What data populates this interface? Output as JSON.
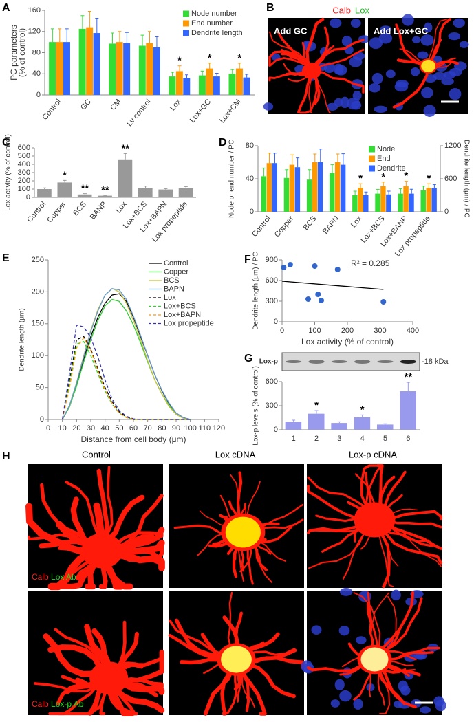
{
  "panel_labels": [
    "A",
    "B",
    "C",
    "D",
    "E",
    "F",
    "G",
    "H"
  ],
  "micrograph_b": {
    "stain_labels": [
      "Calb",
      "Lox"
    ],
    "images": [
      "Add GC",
      "Add Lox+GC"
    ]
  },
  "micrograph_h": {
    "columns": [
      "Control",
      "Lox cDNA",
      "Lox-p cDNA"
    ],
    "rows": [
      [
        "Calb",
        "Lox Ab"
      ],
      [
        "Calb",
        "Lox-p Ab"
      ]
    ]
  },
  "chart_data": [
    {
      "type": "bar",
      "ylabel": [
        "PC parameters",
        "(% of control)"
      ],
      "categories": [
        "Control",
        "GC",
        "CM",
        "Lv control",
        "Lox",
        "Lox+GC",
        "Lox+CM"
      ],
      "series": [
        {
          "name": "Node number",
          "color": "#33dd33",
          "values": [
            100,
            125,
            97,
            93,
            35,
            37,
            40
          ],
          "errors": [
            25,
            25,
            20,
            20,
            8,
            8,
            8
          ]
        },
        {
          "name": "End number",
          "color": "#ff9900",
          "values": [
            100,
            128,
            100,
            98,
            45,
            50,
            50
          ],
          "errors": [
            25,
            30,
            20,
            22,
            10,
            10,
            10
          ]
        },
        {
          "name": "Dendrite length",
          "color": "#3366ff",
          "values": [
            100,
            117,
            98,
            90,
            32,
            35,
            33
          ],
          "errors": [
            25,
            28,
            20,
            20,
            6,
            6,
            6
          ]
        }
      ],
      "ylim": [
        0,
        160
      ],
      "yticks": [
        0,
        40,
        80,
        120,
        160
      ],
      "legend": "upper right",
      "annotations": [
        {
          "category": "Lox",
          "text": "*"
        },
        {
          "category": "Lox+GC",
          "text": "*"
        },
        {
          "category": "Lox+CM",
          "text": "*"
        }
      ]
    },
    {
      "type": "bar",
      "ylabel": "Lox activity (% of control)",
      "categories": [
        "Control",
        "Copper",
        "BCS",
        "BANP",
        "Lox",
        "Lox+BCS",
        "Lox+BAPN",
        "Lox propeptide"
      ],
      "values": [
        100,
        180,
        35,
        20,
        460,
        115,
        95,
        110
      ],
      "errors": [
        15,
        25,
        10,
        5,
        70,
        20,
        10,
        20
      ],
      "color": "#999999",
      "ylim": [
        0,
        600
      ],
      "yticks": [
        0,
        100,
        200,
        300,
        400,
        500,
        600
      ],
      "annotations": [
        {
          "category": "Copper",
          "text": "*"
        },
        {
          "category": "BCS",
          "text": "**"
        },
        {
          "category": "BANP",
          "text": "**"
        },
        {
          "category": "Lox",
          "text": "**"
        }
      ]
    },
    {
      "type": "bar",
      "ylabel": "Node or end number / PC",
      "y2label": "Dendrite length (μm) / PC",
      "categories": [
        "Control",
        "Copper",
        "BCS",
        "BAPN",
        "Lox",
        "Lox+BCS",
        "Lox+BANP",
        "Lox propeptide"
      ],
      "series": [
        {
          "name": "Node",
          "color": "#33dd33",
          "values": [
            43,
            41,
            39,
            47,
            20,
            22,
            22,
            26
          ],
          "errors": [
            10,
            10,
            12,
            10,
            5,
            5,
            6,
            5
          ]
        },
        {
          "name": "End",
          "color": "#ff9900",
          "values": [
            59,
            57,
            60,
            60,
            29,
            31,
            31,
            29
          ],
          "errors": [
            12,
            12,
            10,
            10,
            5,
            5,
            6,
            5
          ]
        },
        {
          "name": "Dendrite",
          "color": "#3366ff",
          "axis": "y2",
          "values": [
            885,
            810,
            900,
            855,
            300,
            315,
            330,
            435
          ],
          "errors": [
            180,
            170,
            240,
            200,
            60,
            60,
            80,
            60
          ]
        }
      ],
      "ylim": [
        0,
        80
      ],
      "yticks": [
        0,
        40,
        80
      ],
      "y2lim": [
        0,
        1200
      ],
      "y2ticks": [
        0,
        600,
        1200
      ],
      "legend": "upper right",
      "annotations": [
        {
          "category": "Lox",
          "text": "*"
        },
        {
          "category": "Lox+BCS",
          "text": "*"
        },
        {
          "category": "Lox+BANP",
          "text": "*"
        },
        {
          "category": "Lox propeptide",
          "text": "*"
        }
      ]
    },
    {
      "type": "line",
      "xlabel": "Distance from cell body (μm)",
      "ylabel": "Dendrite length (μm)",
      "x": [
        10,
        15,
        20,
        25,
        30,
        35,
        40,
        45,
        50,
        55,
        60,
        65,
        70,
        75,
        80,
        85,
        90,
        95,
        100
      ],
      "series": [
        {
          "name": "Control",
          "color": "#000000",
          "line_style": "solid",
          "values": [
            0,
            20,
            55,
            95,
            130,
            160,
            182,
            195,
            197,
            185,
            160,
            130,
            100,
            70,
            45,
            25,
            10,
            3,
            0
          ]
        },
        {
          "name": "Copper",
          "color": "#33cc33",
          "line_style": "solid",
          "values": [
            0,
            20,
            52,
            90,
            125,
            155,
            178,
            188,
            185,
            170,
            148,
            120,
            90,
            62,
            40,
            22,
            8,
            2,
            0
          ]
        },
        {
          "name": "BCS",
          "color": "#c8c040",
          "line_style": "solid",
          "values": [
            0,
            22,
            58,
            100,
            140,
            172,
            195,
            205,
            200,
            182,
            155,
            125,
            92,
            62,
            40,
            20,
            8,
            2,
            0
          ]
        },
        {
          "name": "BAPN",
          "color": "#6699cc",
          "line_style": "solid",
          "values": [
            0,
            22,
            57,
            98,
            138,
            170,
            195,
            205,
            203,
            188,
            162,
            132,
            100,
            70,
            46,
            26,
            10,
            3,
            0
          ]
        },
        {
          "name": "Lox",
          "color": "#000000",
          "line_style": "dashed",
          "values": [
            0,
            60,
            125,
            130,
            110,
            80,
            50,
            28,
            12,
            4,
            0,
            0,
            0,
            0,
            0,
            0,
            0,
            0,
            0
          ]
        },
        {
          "name": "Lox+BCS",
          "color": "#33cc33",
          "line_style": "dashed",
          "values": [
            0,
            55,
            118,
            122,
            100,
            72,
            44,
            24,
            10,
            3,
            0,
            0,
            0,
            0,
            0,
            0,
            0,
            0,
            0
          ]
        },
        {
          "name": "Lox+BAPN",
          "color": "#ff9900",
          "line_style": "dashed",
          "values": [
            0,
            50,
            112,
            128,
            108,
            76,
            46,
            25,
            10,
            3,
            0,
            0,
            0,
            0,
            0,
            0,
            0,
            0,
            0
          ]
        },
        {
          "name": "Lox propeptide",
          "color": "#3333aa",
          "line_style": "dashed",
          "values": [
            0,
            72,
            148,
            145,
            128,
            98,
            62,
            32,
            14,
            5,
            1,
            0,
            0,
            0,
            0,
            0,
            0,
            0,
            0
          ]
        }
      ],
      "xlim": [
        0,
        120
      ],
      "xticks": [
        0,
        10,
        20,
        30,
        40,
        50,
        60,
        70,
        80,
        90,
        100,
        110,
        120
      ],
      "ylim": [
        0,
        250
      ],
      "yticks": [
        0,
        50,
        100,
        150,
        200,
        250
      ],
      "legend": "upper right"
    },
    {
      "type": "scatter",
      "xlabel": "Lox activity (% of control)",
      "ylabel": "Dendrite length (μm) / PC",
      "x": [
        5,
        25,
        100,
        170,
        80,
        110,
        120,
        310
      ],
      "values": [
        790,
        830,
        810,
        760,
        330,
        400,
        310,
        290
      ],
      "color": "#3366cc",
      "trendline": {
        "x": [
          0,
          310
        ],
        "y": [
          590,
          470
        ]
      },
      "annotation": "R² = 0.285",
      "xlim": [
        0,
        400
      ],
      "xticks": [
        0,
        100,
        200,
        300,
        400
      ],
      "ylim": [
        0,
        900
      ],
      "yticks": [
        0,
        300,
        600,
        900
      ]
    },
    {
      "type": "bar",
      "ylabel": "Lox-p levels (% of control)",
      "blot_labels": [
        "Lox-p",
        "-18 kDa"
      ],
      "categories": [
        "1",
        "2",
        "3",
        "4",
        "5",
        "6"
      ],
      "values": [
        100,
        200,
        85,
        155,
        65,
        480
      ],
      "errors": [
        20,
        40,
        15,
        30,
        10,
        110
      ],
      "color": "#9999ee",
      "ylim": [
        0,
        600
      ],
      "yticks": [
        0,
        300,
        600
      ],
      "annotations": [
        {
          "category": "2",
          "text": "*"
        },
        {
          "category": "4",
          "text": "*"
        },
        {
          "category": "6",
          "text": "**"
        }
      ]
    }
  ]
}
